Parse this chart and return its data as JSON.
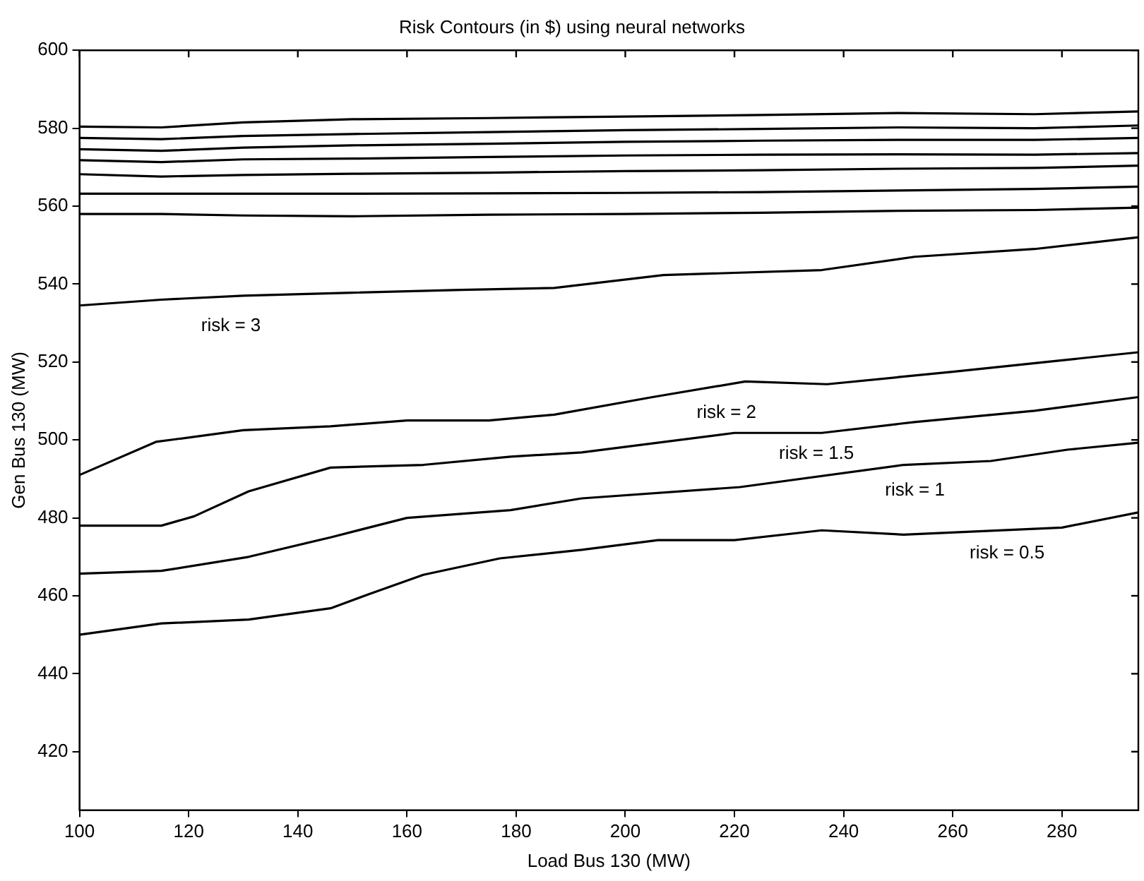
{
  "chart_data": {
    "type": "line",
    "title": "Risk Contours (in $) using neural networks",
    "xlabel": "Load Bus 130 (MW)",
    "ylabel": "Gen Bus 130 (MW)",
    "xlim": [
      100,
      294
    ],
    "xticks": [
      100,
      120,
      140,
      160,
      180,
      200,
      220,
      240,
      260,
      280
    ],
    "ylim": [
      405,
      600
    ],
    "yticks": [
      420,
      440,
      460,
      480,
      500,
      520,
      540,
      560,
      580,
      600
    ],
    "grid": false,
    "legend": false,
    "marker": "none",
    "line_style": "solid",
    "x": [
      100,
      115,
      130,
      150,
      175,
      200,
      225,
      250,
      275,
      294
    ],
    "series": [
      {
        "color": "#000000",
        "values": [
          580.4,
          580.2,
          581.5,
          582.3,
          582.6,
          583,
          583.4,
          583.9,
          583.6,
          584.3
        ]
      },
      {
        "color": "#000000",
        "values": [
          577.5,
          577.2,
          578,
          578.5,
          579,
          579.5,
          579.8,
          580.2,
          580,
          580.7
        ]
      },
      {
        "color": "#000000",
        "values": [
          574.6,
          574.2,
          575,
          575.6,
          576,
          576.5,
          576.8,
          577,
          577,
          577.5
        ]
      },
      {
        "color": "#000000",
        "values": [
          571.8,
          571.3,
          572,
          572.2,
          572.6,
          573,
          573.2,
          573.3,
          573.2,
          573.6
        ]
      },
      {
        "color": "#000000",
        "values": [
          568.2,
          567.6,
          568,
          568.3,
          568.6,
          569,
          569.2,
          569.6,
          569.8,
          570.4
        ]
      },
      {
        "color": "#000000",
        "values": [
          563.2,
          563.2,
          563.2,
          563.2,
          563.3,
          563.4,
          563.6,
          564,
          564.4,
          565
        ]
      },
      {
        "color": "#000000",
        "values": [
          558,
          558,
          557.6,
          557.4,
          557.8,
          558,
          558.3,
          558.8,
          559,
          559.6
        ]
      },
      {
        "name": "risk = 3",
        "color": "#000000",
        "x": [
          100,
          115,
          130,
          150,
          170,
          187,
          207,
          236,
          253,
          275,
          294
        ],
        "values": [
          534.5,
          536,
          537,
          537.8,
          538.5,
          539,
          542.3,
          543.6,
          547,
          549,
          552
        ]
      },
      {
        "name": "risk = 2",
        "color": "#000000",
        "x": [
          100,
          114,
          130,
          146,
          160,
          175,
          187,
          205,
          222,
          237,
          260,
          294
        ],
        "values": [
          491,
          499.5,
          502.5,
          503.5,
          505,
          505,
          506.5,
          511,
          515,
          514.3,
          517.5,
          522.5
        ]
      },
      {
        "name": "risk = 1.5",
        "color": "#000000",
        "x": [
          100,
          115,
          121,
          131,
          146,
          163,
          179,
          192,
          220,
          236,
          253,
          275,
          294
        ],
        "values": [
          478,
          478,
          480.4,
          486.8,
          492.9,
          493.6,
          495.7,
          496.8,
          501.8,
          501.8,
          504.6,
          507.5,
          511
        ]
      },
      {
        "name": "risk = 1",
        "color": "#000000",
        "x": [
          100,
          115,
          131,
          146,
          160,
          179,
          192,
          221,
          251,
          267,
          281,
          294
        ],
        "values": [
          465.7,
          466.4,
          470,
          475,
          480,
          482,
          485,
          487.9,
          493.6,
          494.6,
          497.5,
          499.3
        ]
      },
      {
        "name": "risk = 0.5",
        "color": "#000000",
        "x": [
          100,
          115,
          131,
          146,
          153,
          163,
          177,
          192,
          206,
          220,
          236,
          251,
          280,
          294
        ],
        "values": [
          450,
          452.9,
          453.9,
          456.8,
          460.4,
          465.4,
          469.6,
          471.8,
          474.3,
          474.3,
          476.8,
          475.7,
          477.5,
          481.4
        ]
      }
    ]
  }
}
